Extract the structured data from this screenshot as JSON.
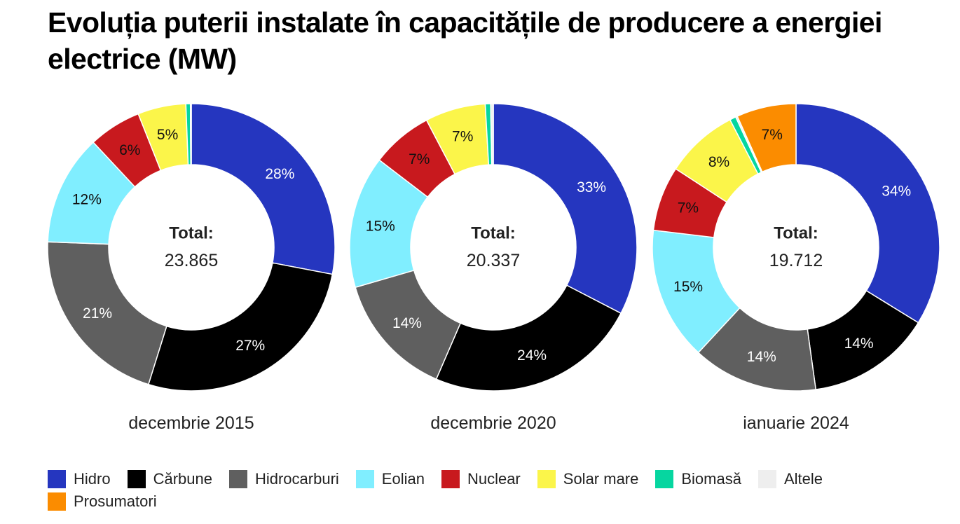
{
  "title": "Evoluția puterii instalate în capacitățile de producere a energiei electrice (MW)",
  "total_label": "Total:",
  "colors": {
    "Hidro": "#2536bf",
    "Cărbune": "#000000",
    "Hidrocarburi": "#5f5f5f",
    "Eolian": "#80eeff",
    "Nuclear": "#c8191e",
    "Solar mare": "#fbf54a",
    "Biomasă": "#06d6a0",
    "Altele": "#eeeeee",
    "Prosumatori": "#fb8c00"
  },
  "legend": [
    "Hidro",
    "Cărbune",
    "Hidrocarburi",
    "Eolian",
    "Nuclear",
    "Solar mare",
    "Biomasă",
    "Altele",
    "Prosumatori"
  ],
  "chart_data": [
    {
      "type": "pie",
      "donut": true,
      "caption": "decembrie 2015",
      "total": "23.865",
      "slices": [
        {
          "name": "Hidro",
          "value": 27.9,
          "label": "28%"
        },
        {
          "name": "Cărbune",
          "value": 26.7,
          "label": "27%"
        },
        {
          "name": "Hidrocarburi",
          "value": 20.7,
          "label": "21%"
        },
        {
          "name": "Eolian",
          "value": 12.4,
          "label": "12%"
        },
        {
          "name": "Nuclear",
          "value": 5.9,
          "label": "6%"
        },
        {
          "name": "Solar mare",
          "value": 5.4,
          "label": "5%"
        },
        {
          "name": "Biomasă",
          "value": 0.5,
          "label": ""
        },
        {
          "name": "Altele",
          "value": 0.1,
          "label": ""
        }
      ]
    },
    {
      "type": "pie",
      "donut": true,
      "caption": "decembrie 2020",
      "total": "20.337",
      "slices": [
        {
          "name": "Hidro",
          "value": 32.6,
          "label": "33%"
        },
        {
          "name": "Cărbune",
          "value": 23.9,
          "label": "24%"
        },
        {
          "name": "Hidrocarburi",
          "value": 14.0,
          "label": "14%"
        },
        {
          "name": "Eolian",
          "value": 14.9,
          "label": "15%"
        },
        {
          "name": "Nuclear",
          "value": 6.9,
          "label": "7%"
        },
        {
          "name": "Solar mare",
          "value": 6.8,
          "label": "7%"
        },
        {
          "name": "Biomasă",
          "value": 0.6,
          "label": ""
        },
        {
          "name": "Altele",
          "value": 0.3,
          "label": ""
        }
      ]
    },
    {
      "type": "pie",
      "donut": true,
      "caption": "ianuarie 2024",
      "total": "19.712",
      "slices": [
        {
          "name": "Hidro",
          "value": 33.8,
          "label": "34%"
        },
        {
          "name": "Cărbune",
          "value": 14.0,
          "label": "14%"
        },
        {
          "name": "Hidrocarburi",
          "value": 14.1,
          "label": "14%"
        },
        {
          "name": "Eolian",
          "value": 15.0,
          "label": "15%"
        },
        {
          "name": "Nuclear",
          "value": 7.3,
          "label": "7%"
        },
        {
          "name": "Solar mare",
          "value": 8.2,
          "label": "8%"
        },
        {
          "name": "Biomasă",
          "value": 0.7,
          "label": ""
        },
        {
          "name": "Altele",
          "value": 0.2,
          "label": ""
        },
        {
          "name": "Prosumatori",
          "value": 6.7,
          "label": "7%"
        }
      ]
    }
  ]
}
